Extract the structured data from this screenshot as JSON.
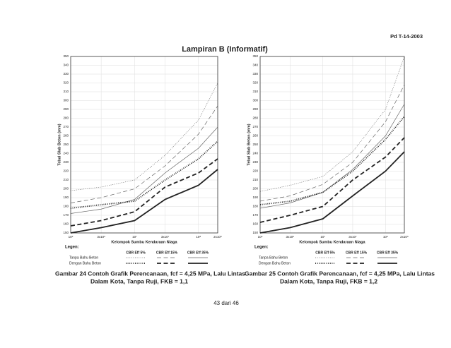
{
  "page": {
    "header": "Pd T-14-2003",
    "title": "Lampiran B (Informatif)",
    "footer": "43 dari 46"
  },
  "chart_data": [
    {
      "type": "line",
      "log_x": true,
      "grid": true,
      "ylabel": "Tebal Slab Beton (mm)",
      "xlabel": "Kelompok Sumbu Kendaraan Niaga",
      "legend_title": "Legen:",
      "legend_rows": [
        "Tanpa Bahu Beton",
        "Dengan Bahu Beton"
      ],
      "legend_columns": [
        "CBR Eff 5%",
        "CBR Eff 15%",
        "CBR Eff 35%"
      ],
      "caption": [
        "Gambar 24  Contoh Grafik Perencanaan, fcf = 4,25 MPa, Lalu Lintas",
        "Dalam Kota, Tanpa Ruji, FKB = 1,1"
      ],
      "x": [
        1000000,
        3000000,
        10000000,
        30000000,
        100000000,
        200000000
      ],
      "xlim": [
        1000000,
        200000000
      ],
      "xticks": [
        {
          "value": 1000000,
          "label": "10⁶"
        },
        {
          "value": 3000000,
          "label": "3x10⁶"
        },
        {
          "value": 10000000,
          "label": "10⁷"
        },
        {
          "value": 30000000,
          "label": "3x10⁷"
        },
        {
          "value": 100000000,
          "label": "10⁸"
        },
        {
          "value": 200000000,
          "label": "2x10⁸"
        }
      ],
      "ylim": [
        150,
        350
      ],
      "yticks": [
        150,
        160,
        170,
        180,
        190,
        200,
        210,
        220,
        230,
        240,
        250,
        260,
        270,
        280,
        290,
        300,
        310,
        320,
        330,
        340,
        350
      ],
      "series": [
        {
          "color": "#666",
          "style": "dotted",
          "width": "thin",
          "values": [
            198,
            202,
            210,
            238,
            278,
            320
          ]
        },
        {
          "color": "#666",
          "style": "dashed",
          "width": "thin",
          "values": [
            184,
            190,
            200,
            226,
            262,
            294
          ]
        },
        {
          "color": "#666",
          "style": "solid",
          "width": "thin",
          "values": [
            172,
            177,
            188,
            218,
            246,
            270
          ]
        },
        {
          "color": "#222",
          "style": "dotted",
          "width": "thick",
          "values": [
            178,
            182,
            186,
            210,
            234,
            254
          ]
        },
        {
          "color": "#222",
          "style": "dashed",
          "width": "thick",
          "values": [
            158,
            164,
            174,
            202,
            218,
            234
          ]
        },
        {
          "color": "#222",
          "style": "solid",
          "width": "thick",
          "values": [
            150,
            156,
            164,
            188,
            204,
            222
          ]
        }
      ]
    },
    {
      "type": "line",
      "log_x": true,
      "grid": true,
      "ylabel": "Tebal Slab Beton (mm)",
      "xlabel": "Kelompok Sumbu Kendaraan Niaga",
      "legend_title": "Legen:",
      "legend_rows": [
        "Tanpa Bahu Beton",
        "Dengan Bahu Beton"
      ],
      "legend_columns": [
        "CBR Eff 5%",
        "CBR Eff 15%",
        "CBR Eff 35%"
      ],
      "caption": [
        "Gambar 25  Contoh Grafik Perencanaan, fcf = 4,25 MPa, Lalu Lintas",
        "Dalam Kota, Tanpa Ruji, FKB = 1,2"
      ],
      "x": [
        1000000,
        3000000,
        10000000,
        30000000,
        100000000,
        200000000
      ],
      "xlim": [
        1000000,
        200000000
      ],
      "xticks": [
        {
          "value": 1000000,
          "label": "10⁶"
        },
        {
          "value": 3000000,
          "label": "3x10⁶"
        },
        {
          "value": 10000000,
          "label": "10⁷"
        },
        {
          "value": 30000000,
          "label": "3x10⁷"
        },
        {
          "value": 100000000,
          "label": "10⁸"
        },
        {
          "value": 200000000,
          "label": "2x10⁸"
        }
      ],
      "ylim": [
        150,
        350
      ],
      "yticks": [
        150,
        160,
        170,
        180,
        190,
        200,
        210,
        220,
        230,
        240,
        250,
        260,
        270,
        280,
        290,
        300,
        310,
        320,
        330,
        340,
        350
      ],
      "series": [
        {
          "color": "#666",
          "style": "dotted",
          "width": "thin",
          "values": [
            197,
            204,
            214,
            242,
            290,
            350
          ]
        },
        {
          "color": "#666",
          "style": "dashed",
          "width": "thin",
          "values": [
            186,
            192,
            205,
            230,
            276,
            318
          ]
        },
        {
          "color": "#666",
          "style": "solid",
          "width": "thin",
          "values": [
            178,
            184,
            196,
            222,
            260,
            296
          ]
        },
        {
          "color": "#222",
          "style": "dotted",
          "width": "thick",
          "values": [
            182,
            186,
            196,
            220,
            256,
            282
          ]
        },
        {
          "color": "#222",
          "style": "dashed",
          "width": "thick",
          "values": [
            162,
            170,
            180,
            210,
            236,
            258
          ]
        },
        {
          "color": "#222",
          "style": "solid",
          "width": "thick",
          "values": [
            150,
            156,
            166,
            192,
            220,
            242
          ]
        }
      ]
    }
  ]
}
